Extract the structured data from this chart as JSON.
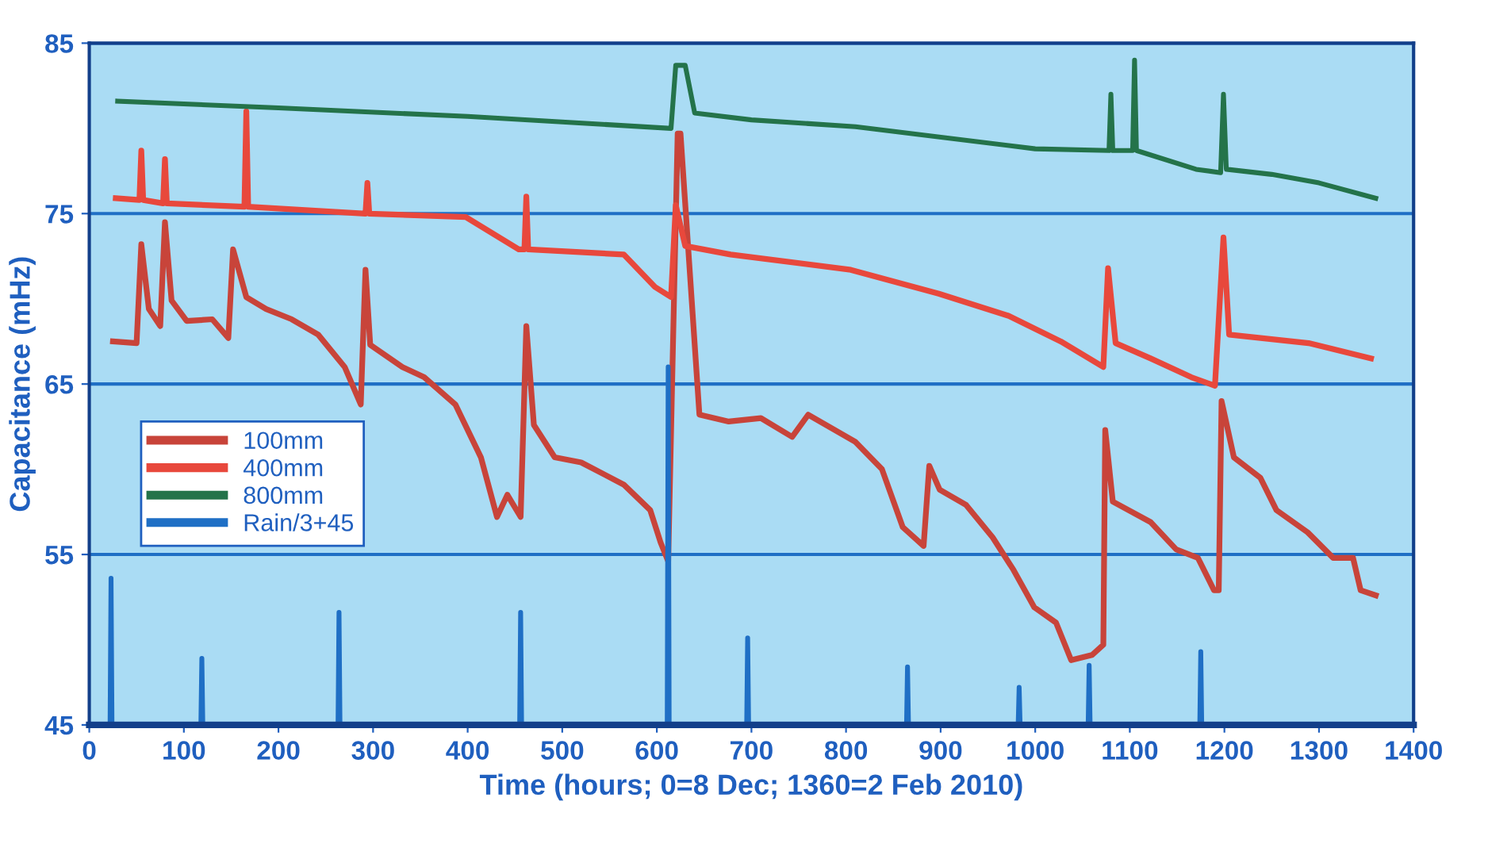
{
  "chart_data": {
    "type": "line",
    "xlabel": "Time (hours; 0=8 Dec; 1360=2 Feb 2010)",
    "ylabel": "Capacitance (mHz)",
    "xlim": [
      0,
      1400
    ],
    "xticks": [
      0,
      100,
      200,
      300,
      400,
      500,
      600,
      700,
      800,
      900,
      1000,
      1100,
      1200,
      1300,
      1400
    ],
    "ylim": [
      45,
      85
    ],
    "yticks": [
      45,
      55,
      65,
      75,
      85
    ],
    "grid": "y",
    "legend": "center left",
    "marker": "none",
    "line_style": "solid",
    "series": [
      {
        "name": "100mm",
        "color": "#c8443a",
        "x": [
          25,
          50,
          55,
          63,
          75,
          80,
          87,
          103,
          130,
          147,
          152,
          166,
          187,
          214,
          242,
          270,
          287,
          292,
          297,
          331,
          354,
          387,
          414,
          431,
          442,
          456,
          462,
          470,
          492,
          520,
          565,
          593,
          604,
          612,
          622,
          625,
          645,
          676,
          710,
          743,
          760,
          810,
          838,
          860,
          882,
          888,
          899,
          927,
          955,
          977,
          999,
          1022,
          1038,
          1060,
          1072,
          1074,
          1082,
          1122,
          1149,
          1172,
          1189,
          1194,
          1197,
          1210,
          1238,
          1255,
          1288,
          1315,
          1336,
          1344,
          1360
        ],
        "values": [
          67.5,
          67.4,
          73.2,
          69.4,
          68.4,
          74.5,
          69.9,
          68.7,
          68.8,
          67.7,
          72.9,
          70.1,
          69.4,
          68.8,
          67.9,
          66.0,
          63.8,
          71.7,
          67.3,
          66.0,
          65.4,
          63.8,
          60.7,
          57.2,
          58.5,
          57.2,
          68.4,
          62.6,
          60.7,
          60.4,
          59.1,
          57.6,
          55.7,
          54.6,
          79.7,
          79.7,
          63.2,
          62.8,
          63.0,
          61.9,
          63.2,
          61.6,
          60.0,
          56.6,
          55.5,
          60.2,
          58.8,
          57.9,
          56.0,
          54.1,
          51.9,
          51.0,
          48.8,
          49.1,
          49.7,
          62.3,
          58.1,
          56.9,
          55.3,
          54.8,
          52.9,
          52.9,
          64.0,
          60.7,
          59.5,
          57.6,
          56.3,
          54.8,
          54.8,
          52.9,
          52.6
        ]
      },
      {
        "name": "400mm",
        "color": "#e8483c",
        "x": [
          28,
          53,
          55,
          57,
          78,
          80,
          82,
          164,
          166,
          168,
          292,
          294,
          296,
          398,
          454,
          460,
          462,
          464,
          565,
          598,
          615,
          620,
          630,
          678,
          805,
          898,
          972,
          1027,
          1072,
          1077,
          1085,
          1122,
          1165,
          1190,
          1199,
          1205,
          1289,
          1355
        ],
        "values": [
          75.9,
          75.8,
          78.7,
          75.8,
          75.6,
          78.2,
          75.6,
          75.4,
          81.0,
          75.4,
          75.0,
          76.8,
          75.0,
          74.8,
          72.9,
          72.9,
          76.0,
          72.9,
          72.6,
          70.7,
          70.1,
          75.5,
          73.1,
          72.6,
          71.7,
          70.3,
          69.0,
          67.5,
          66.0,
          71.8,
          67.4,
          66.5,
          65.4,
          64.9,
          73.6,
          67.9,
          67.4,
          66.5
        ]
      },
      {
        "name": "800mm",
        "color": "#24734a",
        "x": [
          30,
          200,
          400,
          615,
          620,
          630,
          640,
          700,
          810,
          1000,
          1078,
          1080,
          1082,
          1103,
          1105,
          1107,
          1170,
          1196,
          1199,
          1202,
          1250,
          1300,
          1360
        ],
        "values": [
          81.6,
          81.2,
          80.7,
          80.0,
          83.7,
          83.7,
          80.9,
          80.5,
          80.1,
          78.8,
          78.7,
          82.0,
          78.7,
          78.7,
          84.0,
          78.7,
          77.6,
          77.4,
          82.0,
          77.6,
          77.3,
          76.8,
          75.9
        ]
      },
      {
        "name": "Rain/3+45",
        "color": "#1f6fc5",
        "x": [
          0,
          22,
          23,
          24,
          118,
          119,
          120,
          263,
          264,
          265,
          455,
          456,
          457,
          611,
          612,
          613,
          695,
          696,
          697,
          864,
          865,
          866,
          982,
          983,
          984,
          1056,
          1057,
          1058,
          1174,
          1175,
          1176,
          1360
        ],
        "values": [
          45,
          45,
          53.6,
          45,
          45,
          48.9,
          45,
          45,
          51.6,
          45,
          45,
          51.6,
          45,
          45,
          66.0,
          45,
          45,
          50.1,
          45,
          45,
          48.4,
          45,
          45,
          47.2,
          45,
          45,
          48.5,
          45,
          45,
          49.3,
          45,
          45
        ]
      }
    ]
  }
}
